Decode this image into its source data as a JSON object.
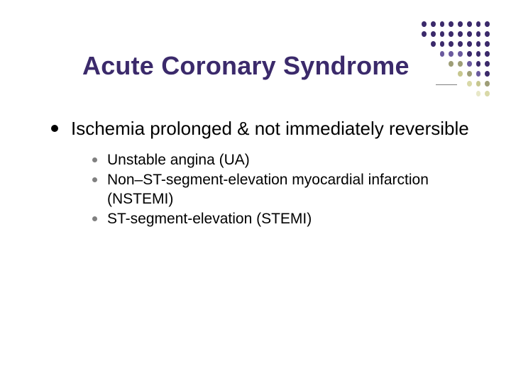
{
  "title": {
    "text": "Acute Coronary Syndrome",
    "color": "#3b2a6b",
    "fontsize": 36,
    "fontweight": "bold"
  },
  "body": {
    "level1": {
      "bullet_color": "#000000",
      "text": "Ischemia prolonged & not immediately reversible",
      "fontsize": 26
    },
    "level2": {
      "bullet_color": "#808080",
      "fontsize": 21,
      "items": [
        "Unstable angina (UA)",
        "Non–ST-segment-elevation myocardial infarction (NSTEMI)",
        "ST-segment-elevation (STEMI)"
      ]
    }
  },
  "decor": {
    "grid": {
      "cols": 8,
      "rows": 8,
      "dot_size": 8,
      "gap": 6,
      "colors": [
        [
          "#3b2a6b",
          "#3b2a6b",
          "#3b2a6b",
          "#3b2a6b",
          "#3b2a6b",
          "#3b2a6b",
          "#3b2a6b",
          "#3b2a6b"
        ],
        [
          "#3b2a6b",
          "#3b2a6b",
          "#3b2a6b",
          "#3b2a6b",
          "#3b2a6b",
          "#3b2a6b",
          "#3b2a6b",
          "#3b2a6b"
        ],
        [
          "",
          "#3b2a6b",
          "#3b2a6b",
          "#3b2a6b",
          "#3b2a6b",
          "#3b2a6b",
          "#3b2a6b",
          "#3b2a6b"
        ],
        [
          "",
          "",
          "#6a5a9e",
          "#6a5a9e",
          "#6a5a9e",
          "#3b2a6b",
          "#3b2a6b",
          "#3b2a6b"
        ],
        [
          "",
          "",
          "",
          "#9e9e77",
          "#9e9e77",
          "#6a5a9e",
          "#3b2a6b",
          "#3b2a6b"
        ],
        [
          "",
          "",
          "",
          "",
          "#c7c78f",
          "#9e9e77",
          "#6a5a9e",
          "#3b2a6b"
        ],
        [
          "",
          "",
          "",
          "",
          "",
          "#d9d9a8",
          "#c7c78f",
          "#9e9e77"
        ],
        [
          "",
          "",
          "",
          "",
          "",
          "",
          "#e8e8c8",
          "#d9d9a8"
        ]
      ]
    }
  },
  "background_color": "#ffffff"
}
